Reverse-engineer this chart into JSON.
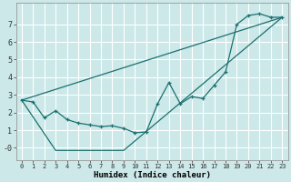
{
  "xlabel": "Humidex (Indice chaleur)",
  "background_color": "#cce8e8",
  "line_color": "#1a7070",
  "grid_color": "#ffffff",
  "xlim": [
    -0.5,
    23.5
  ],
  "ylim": [
    -0.7,
    8.2
  ],
  "xticks": [
    0,
    1,
    2,
    3,
    4,
    5,
    6,
    7,
    8,
    9,
    10,
    11,
    12,
    13,
    14,
    15,
    16,
    17,
    18,
    19,
    20,
    21,
    22,
    23
  ],
  "yticks": [
    0,
    1,
    2,
    3,
    4,
    5,
    6,
    7
  ],
  "ytick_labels": [
    "-0",
    "1",
    "2",
    "3",
    "4",
    "5",
    "6",
    "7"
  ],
  "line1_x": [
    0,
    1,
    2,
    3,
    4,
    5,
    6,
    7,
    8,
    9,
    10,
    11,
    12,
    13,
    14,
    15,
    16,
    17,
    18,
    19,
    20,
    21,
    22,
    23
  ],
  "line1_y": [
    2.7,
    2.6,
    1.7,
    2.1,
    1.6,
    1.4,
    1.3,
    1.2,
    1.25,
    1.1,
    0.85,
    0.9,
    2.5,
    3.7,
    2.5,
    2.9,
    2.8,
    3.55,
    4.3,
    7.0,
    7.5,
    7.6,
    7.4,
    7.4
  ],
  "line2_x": [
    0,
    23
  ],
  "line2_y": [
    2.7,
    7.4
  ],
  "line3_x": [
    0,
    3,
    9,
    23
  ],
  "line3_y": [
    2.7,
    -0.15,
    -0.15,
    7.4
  ],
  "figsize": [
    3.2,
    2.0
  ],
  "dpi": 100
}
